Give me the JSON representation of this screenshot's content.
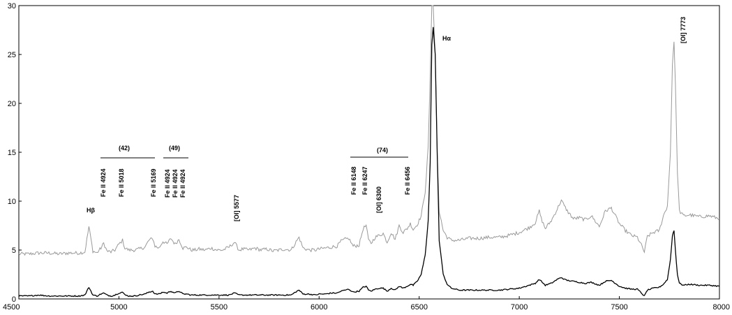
{
  "chart_data": {
    "type": "line",
    "title": "",
    "xlabel": "",
    "ylabel": "",
    "xlim": [
      4500,
      8000
    ],
    "ylim": [
      0,
      30
    ],
    "x_ticks": [
      4500,
      5000,
      5500,
      6000,
      6500,
      7000,
      7500,
      8000
    ],
    "y_ticks": [
      0,
      5,
      10,
      15,
      20,
      25,
      30
    ],
    "grid": false,
    "legend": "none",
    "series": [
      {
        "color": "#999999",
        "x": [
          4500,
          4550,
          4600,
          4650,
          4700,
          4750,
          4800,
          4830,
          4850,
          4870,
          4890,
          4910,
          4924,
          4940,
          4960,
          4980,
          5000,
          5018,
          5030,
          5050,
          5080,
          5100,
          5130,
          5150,
          5169,
          5180,
          5200,
          5220,
          5240,
          5260,
          5280,
          5300,
          5320,
          5340,
          5360,
          5380,
          5400,
          5430,
          5460,
          5490,
          5520,
          5550,
          5577,
          5600,
          5620,
          5650,
          5680,
          5710,
          5740,
          5770,
          5800,
          5830,
          5860,
          5890,
          5900,
          5920,
          5950,
          5980,
          6000,
          6030,
          6060,
          6090,
          6110,
          6130,
          6148,
          6170,
          6200,
          6220,
          6235,
          6247,
          6260,
          6280,
          6300,
          6320,
          6340,
          6360,
          6380,
          6400,
          6420,
          6440,
          6456,
          6470,
          6490,
          6510,
          6530,
          6545,
          6555,
          6563,
          6570,
          6580,
          6590,
          6600,
          6620,
          6640,
          6660,
          6700,
          6750,
          6800,
          6850,
          6900,
          6950,
          7000,
          7050,
          7080,
          7100,
          7110,
          7130,
          7160,
          7190,
          7210,
          7225,
          7240,
          7270,
          7300,
          7330,
          7360,
          7400,
          7430,
          7460,
          7480,
          7500,
          7530,
          7560,
          7590,
          7610,
          7625,
          7640,
          7670,
          7700,
          7720,
          7740,
          7755,
          7765,
          7773,
          7780,
          7790,
          7800,
          7820,
          7850,
          7900,
          7950,
          8000
        ],
        "values": [
          4.6,
          4.6,
          4.7,
          4.7,
          4.6,
          4.7,
          4.7,
          4.8,
          7.4,
          4.9,
          4.7,
          5.2,
          5.7,
          4.9,
          4.8,
          5.0,
          5.6,
          6.0,
          5.2,
          5.0,
          5.0,
          5.1,
          5.3,
          6.0,
          6.2,
          5.4,
          5.2,
          5.9,
          5.6,
          6.2,
          5.6,
          6.1,
          5.2,
          5.3,
          5.0,
          5.0,
          5.1,
          5.0,
          5.2,
          5.0,
          5.0,
          5.3,
          5.8,
          5.0,
          5.1,
          5.0,
          5.2,
          5.0,
          5.1,
          4.9,
          5.0,
          5.1,
          5.0,
          6.0,
          6.3,
          5.2,
          5.0,
          5.0,
          5.1,
          5.2,
          5.3,
          5.4,
          5.9,
          6.1,
          6.2,
          5.4,
          5.5,
          7.2,
          7.5,
          6.0,
          5.7,
          6.3,
          6.5,
          6.7,
          5.8,
          6.8,
          6.1,
          7.5,
          6.8,
          7.2,
          7.7,
          7.1,
          7.6,
          8.5,
          11.0,
          15.5,
          23.0,
          30.0,
          30.0,
          25.0,
          15.0,
          9.0,
          7.0,
          6.3,
          6.0,
          6.0,
          6.2,
          6.2,
          6.3,
          6.3,
          6.5,
          6.8,
          7.3,
          7.8,
          9.0,
          8.2,
          7.2,
          8.0,
          9.2,
          10.1,
          9.5,
          9.0,
          8.2,
          8.3,
          8.1,
          8.5,
          7.4,
          9.0,
          9.3,
          8.5,
          7.7,
          7.0,
          6.5,
          6.3,
          5.5,
          4.8,
          6.4,
          6.8,
          7.0,
          8.5,
          9.5,
          15.0,
          24.0,
          26.3,
          22.0,
          13.0,
          9.0,
          8.5,
          8.6,
          8.4,
          8.5,
          8.2
        ]
      },
      {
        "color": "#000000",
        "x": [
          4500,
          4550,
          4600,
          4650,
          4700,
          4750,
          4800,
          4830,
          4850,
          4870,
          4890,
          4910,
          4924,
          4940,
          4960,
          4980,
          5000,
          5018,
          5030,
          5050,
          5080,
          5100,
          5130,
          5150,
          5169,
          5180,
          5200,
          5220,
          5240,
          5260,
          5280,
          5300,
          5320,
          5340,
          5360,
          5380,
          5400,
          5430,
          5460,
          5490,
          5520,
          5550,
          5577,
          5600,
          5620,
          5650,
          5680,
          5710,
          5740,
          5770,
          5800,
          5830,
          5860,
          5890,
          5900,
          5920,
          5950,
          5980,
          6000,
          6030,
          6060,
          6090,
          6110,
          6130,
          6148,
          6170,
          6200,
          6220,
          6235,
          6247,
          6260,
          6280,
          6300,
          6320,
          6340,
          6360,
          6380,
          6400,
          6420,
          6440,
          6456,
          6470,
          6490,
          6510,
          6530,
          6545,
          6555,
          6563,
          6570,
          6580,
          6590,
          6600,
          6620,
          6640,
          6660,
          6700,
          6750,
          6800,
          6850,
          6900,
          6950,
          7000,
          7050,
          7080,
          7100,
          7110,
          7130,
          7160,
          7190,
          7210,
          7225,
          7240,
          7270,
          7300,
          7330,
          7360,
          7400,
          7430,
          7460,
          7480,
          7500,
          7530,
          7560,
          7590,
          7610,
          7625,
          7640,
          7670,
          7700,
          7720,
          7740,
          7755,
          7765,
          7773,
          7780,
          7790,
          7800,
          7820,
          7850,
          7900,
          7950,
          8000
        ],
        "values": [
          0.3,
          0.3,
          0.4,
          0.3,
          0.3,
          0.3,
          0.3,
          0.4,
          1.2,
          0.4,
          0.3,
          0.5,
          0.6,
          0.4,
          0.3,
          0.4,
          0.6,
          0.7,
          0.4,
          0.3,
          0.3,
          0.4,
          0.5,
          0.7,
          0.8,
          0.5,
          0.5,
          0.7,
          0.6,
          0.8,
          0.6,
          0.8,
          0.5,
          0.5,
          0.4,
          0.4,
          0.4,
          0.4,
          0.4,
          0.4,
          0.4,
          0.4,
          0.6,
          0.4,
          0.4,
          0.4,
          0.4,
          0.4,
          0.4,
          0.4,
          0.4,
          0.4,
          0.4,
          0.8,
          0.9,
          0.5,
          0.5,
          0.4,
          0.5,
          0.5,
          0.6,
          0.6,
          0.8,
          0.9,
          1.0,
          0.7,
          0.8,
          1.2,
          1.3,
          0.9,
          0.8,
          1.0,
          1.1,
          1.1,
          0.8,
          1.1,
          0.9,
          1.3,
          1.1,
          1.3,
          1.5,
          1.4,
          1.8,
          2.5,
          4.5,
          8.0,
          14.0,
          26.0,
          27.8,
          25.0,
          15.0,
          6.0,
          2.5,
          1.5,
          1.1,
          0.9,
          0.9,
          0.9,
          0.9,
          0.9,
          1.0,
          1.1,
          1.4,
          1.6,
          2.0,
          1.8,
          1.4,
          1.6,
          2.0,
          2.2,
          2.0,
          1.9,
          1.8,
          1.7,
          1.6,
          1.7,
          1.4,
          1.8,
          1.9,
          1.6,
          1.3,
          1.1,
          1.0,
          1.0,
          0.6,
          0.3,
          0.9,
          1.1,
          1.2,
          1.5,
          2.0,
          4.0,
          6.5,
          7.0,
          5.0,
          2.5,
          1.6,
          1.4,
          1.5,
          1.4,
          1.4,
          1.3
        ]
      }
    ],
    "annotations": {
      "hbeta": "Hβ",
      "halpha": "Hα",
      "multiplet_42": "(42)",
      "multiplet_49": "(49)",
      "multiplet_74": "(74)",
      "fe_4924": "Fe II 4924",
      "fe_5018": "Fe II 5018",
      "fe_5169": "Fe II 5169",
      "fe_49_a": "Fe II 4924",
      "fe_49_b": "Fe II 4924",
      "fe_49_c": "Fe II 4924",
      "oi_5577": "[OI] 5577",
      "fe_6148": "Fe II 6148",
      "fe_6247": "Fe II 6247",
      "oi_6300": "[OI] 6300",
      "fe_6456": "Fe II 6456",
      "oi_7773": "[OI] 7773"
    }
  }
}
